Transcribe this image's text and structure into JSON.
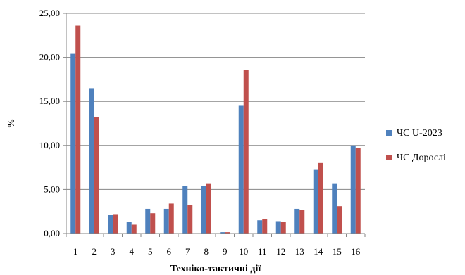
{
  "chart_data": {
    "type": "bar",
    "xlabel": "Техніко-тактичні  дії",
    "ylabel": "%",
    "ylim": [
      0,
      25
    ],
    "y_ticks": [
      "0,00",
      "5,00",
      "10,00",
      "15,00",
      "20,00",
      "25,00"
    ],
    "y_tick_values": [
      0,
      5,
      10,
      15,
      20,
      25
    ],
    "grid": true,
    "legend_position": "right",
    "categories": [
      "1",
      "2",
      "3",
      "4",
      "5",
      "6",
      "7",
      "8",
      "9",
      "10",
      "11",
      "12",
      "13",
      "14",
      "15",
      "16"
    ],
    "series": [
      {
        "name": "ЧС U-2023",
        "color": "#4f81bd",
        "values": [
          20.4,
          16.5,
          2.1,
          1.3,
          2.8,
          2.8,
          5.4,
          5.4,
          0.15,
          14.5,
          1.5,
          1.4,
          2.8,
          7.3,
          5.7,
          10.0
        ]
      },
      {
        "name": "ЧС Дорослі",
        "color": "#c0504d",
        "values": [
          23.6,
          13.2,
          2.2,
          1.0,
          2.3,
          3.4,
          3.2,
          5.7,
          0.15,
          18.6,
          1.6,
          1.3,
          2.7,
          8.0,
          3.1,
          9.7
        ]
      }
    ],
    "colors": {
      "grid": "#868686",
      "axis": "#868686"
    }
  }
}
